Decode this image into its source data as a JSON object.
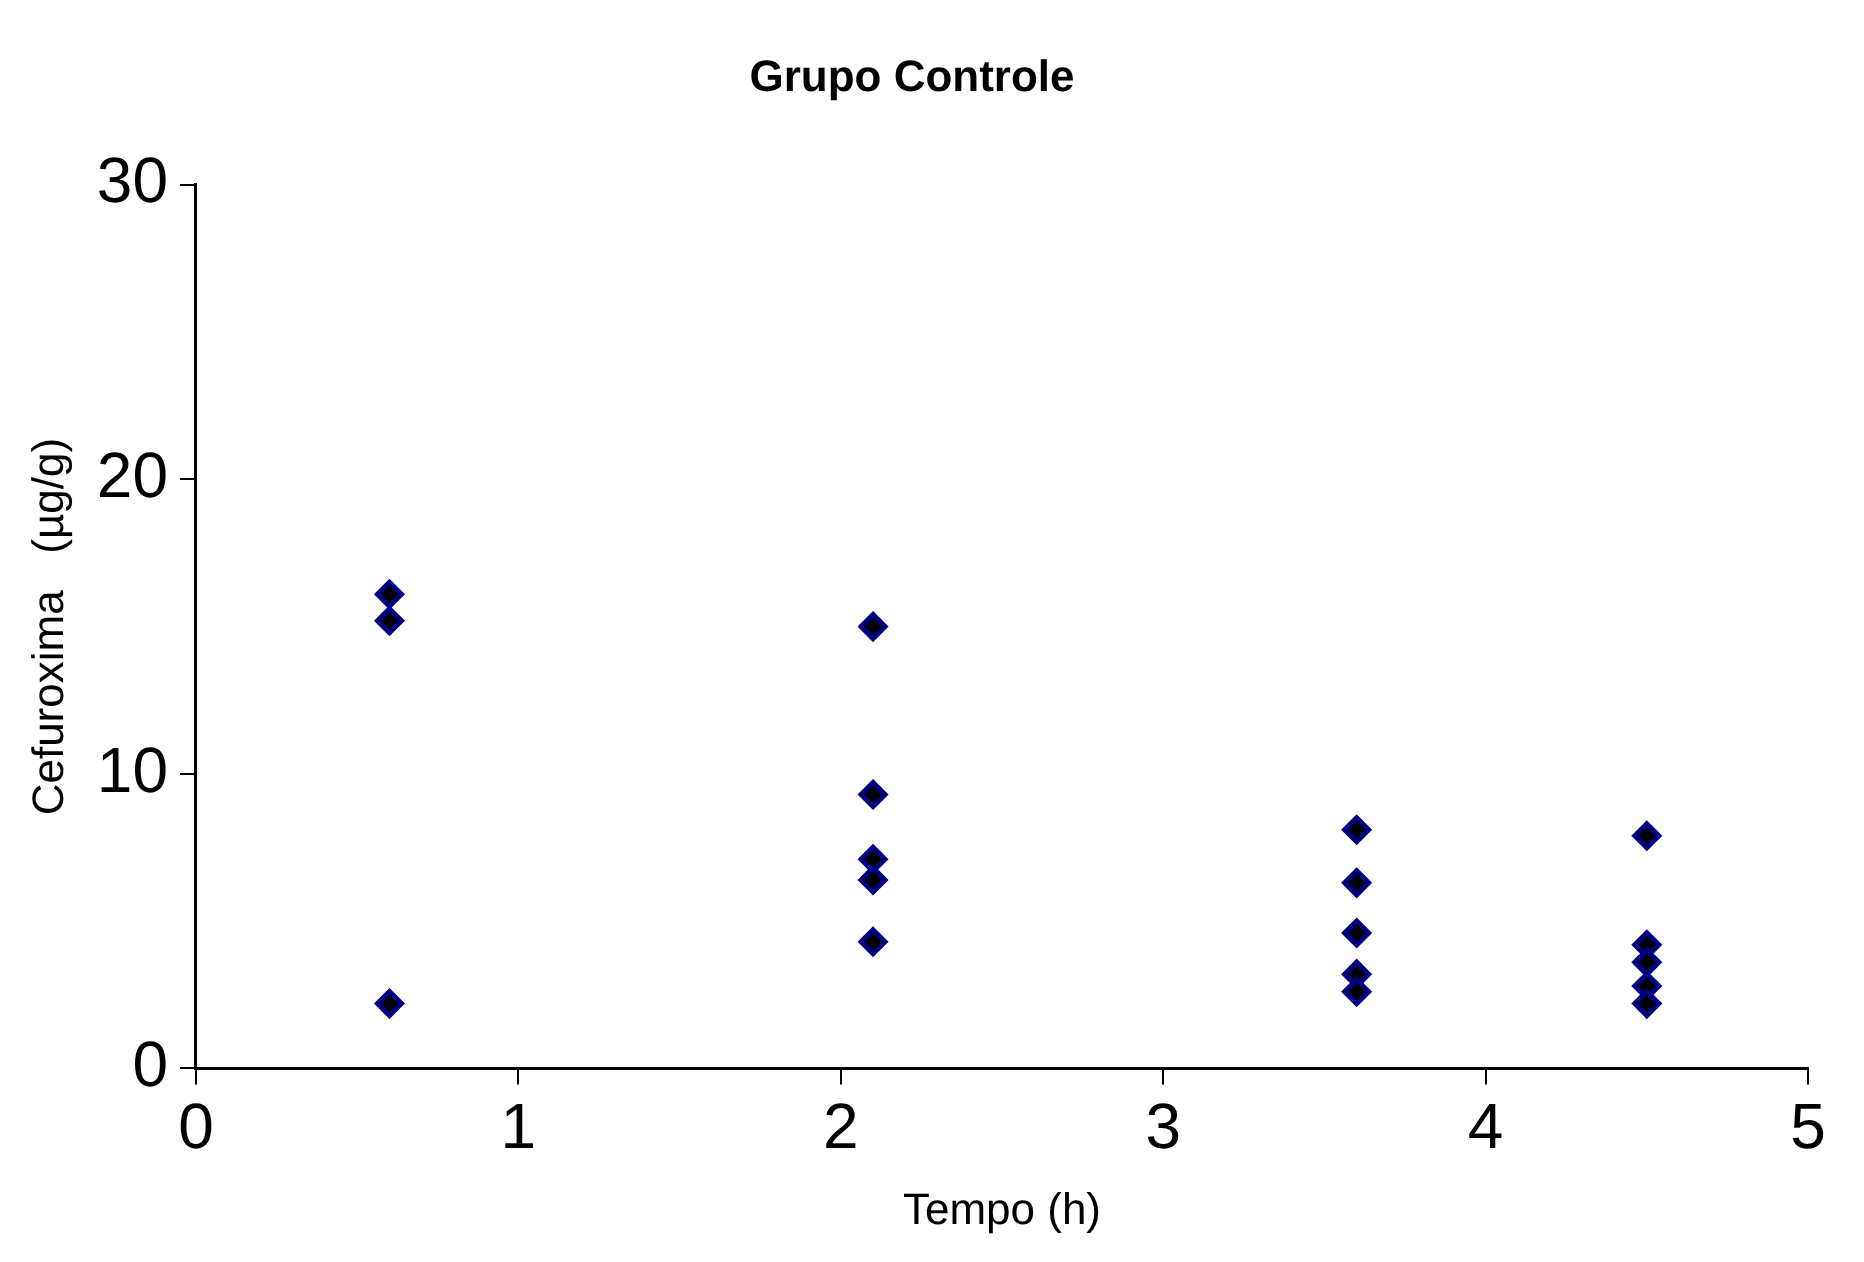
{
  "chart_data": {
    "type": "scatter",
    "title": "Grupo Controle",
    "xlabel": "Tempo (h)",
    "ylabel": "Cefuroxima   (µg/g)",
    "x": [
      0.6,
      0.6,
      0.6,
      2.1,
      2.1,
      2.1,
      2.1,
      2.1,
      3.6,
      3.6,
      3.6,
      3.6,
      3.6,
      4.5,
      4.5,
      4.5,
      4.5,
      4.5
    ],
    "series": [
      {
        "color": "#000080",
        "values": [
          16.1,
          15.2,
          2.2,
          15.0,
          9.3,
          7.1,
          6.4,
          4.3,
          8.1,
          6.3,
          4.6,
          3.2,
          2.6,
          7.9,
          4.2,
          3.6,
          2.8,
          2.2
        ]
      }
    ],
    "xlim": [
      0,
      5
    ],
    "xticks": [
      0,
      1,
      2,
      3,
      4,
      5
    ],
    "ylim": [
      0,
      30
    ],
    "yticks": [
      0,
      10,
      20,
      30
    ],
    "grid": false,
    "legend": false,
    "marker": "diamond"
  }
}
